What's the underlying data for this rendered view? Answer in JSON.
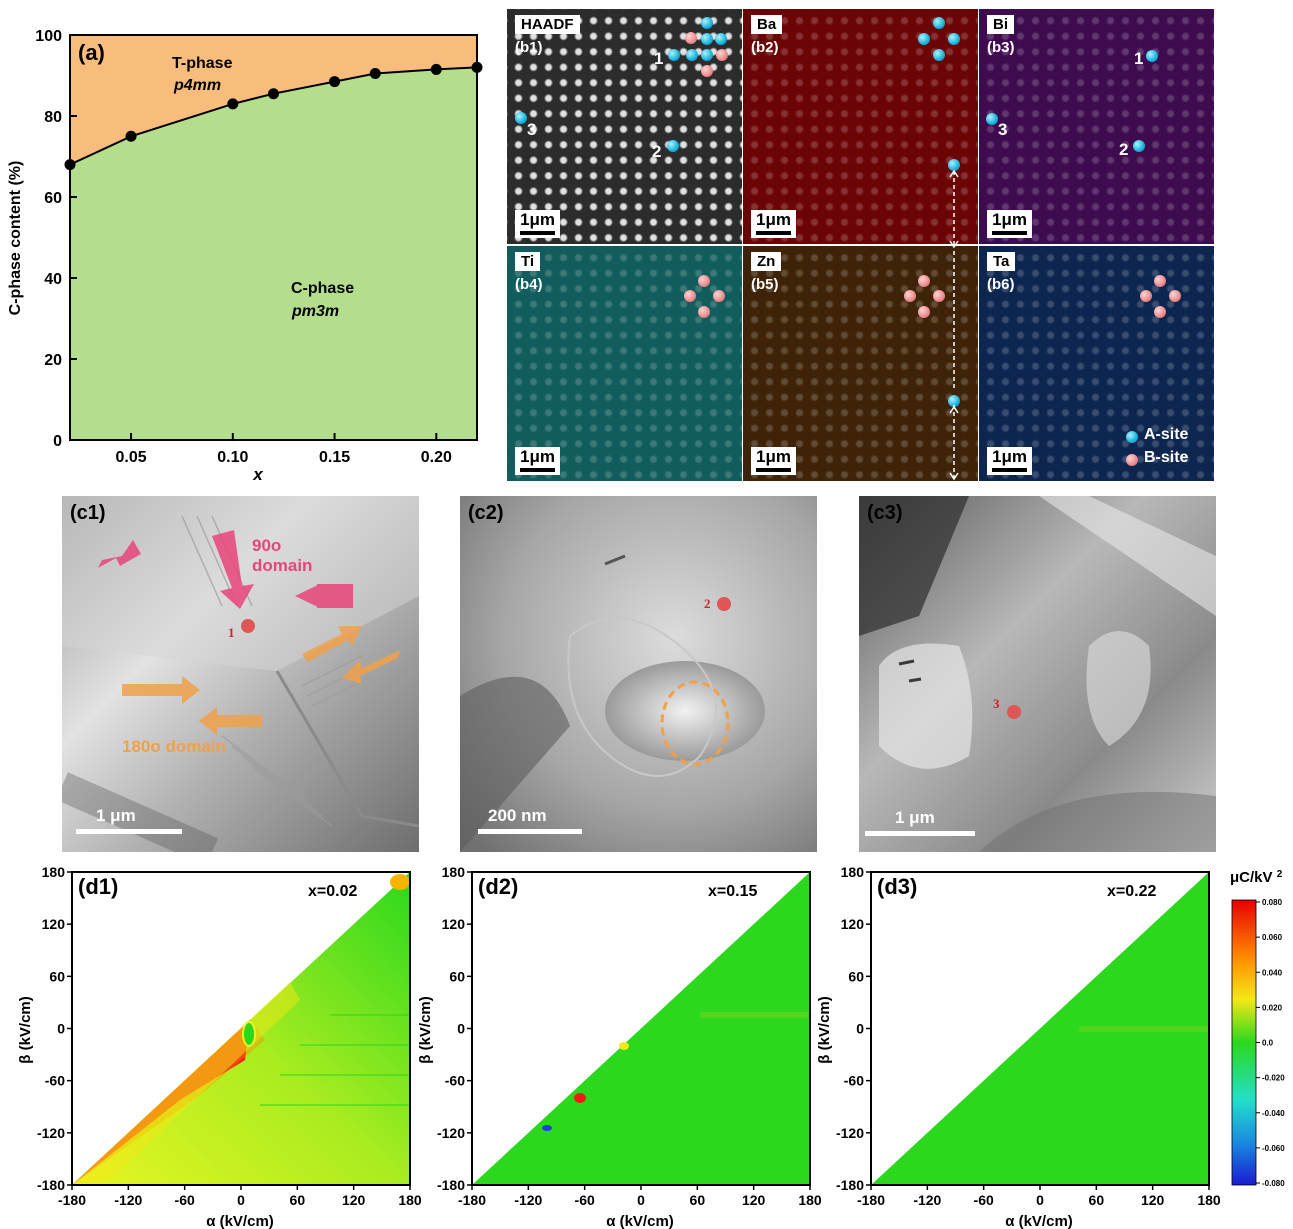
{
  "panel_a": {
    "label": "(a)",
    "t_phase_name": "T-phase",
    "t_phase_group": "p4mm",
    "c_phase_name": "C-phase",
    "c_phase_group": "pm3m",
    "xlabel": "x",
    "ylabel": "C-phase content (%)",
    "colors": {
      "t_region": "#f8bd7c",
      "c_region": "#b4de8e"
    }
  },
  "chart_data": {
    "type": "line",
    "x": [
      0.02,
      0.05,
      0.1,
      0.12,
      0.15,
      0.17,
      0.2,
      0.22
    ],
    "y": [
      68,
      75,
      83,
      85.5,
      88.5,
      90.5,
      91.5,
      92
    ],
    "xlim": [
      0.02,
      0.22
    ],
    "ylim": [
      0,
      100
    ],
    "xticks": [
      "0.05",
      "0.10",
      "0.15",
      "0.20"
    ],
    "yticks": [
      "0",
      "20",
      "40",
      "60",
      "80",
      "100"
    ],
    "xlabel": "x",
    "ylabel": "C-phase content (%)"
  },
  "eds": {
    "maps": [
      {
        "tag": "HAADF",
        "sub": "(b1)",
        "color": "#2c2c2c"
      },
      {
        "tag": "Ba",
        "sub": "(b2)",
        "color": "#6b0505"
      },
      {
        "tag": "Bi",
        "sub": "(b3)",
        "color": "#3e0b4f"
      },
      {
        "tag": "Ti",
        "sub": "(b4)",
        "color": "#115c5c"
      },
      {
        "tag": "Zn",
        "sub": "(b5)",
        "color": "#3e2308"
      },
      {
        "tag": "Ta",
        "sub": "(b6)",
        "color": "#0d2650"
      }
    ],
    "scale": "1μm",
    "site_numbers": [
      "1",
      "2",
      "3"
    ],
    "legend_a": "A-site",
    "legend_b": "B-site"
  },
  "tem": {
    "c1": {
      "label": "(c1)",
      "scale": "1 μm",
      "domain90_a": "90o",
      "domain90_b": "domain",
      "domain180": "180o domain",
      "point": "1"
    },
    "c2": {
      "label": "(c2)",
      "scale": "200 nm",
      "point": "2"
    },
    "c3": {
      "label": "(c3)",
      "scale": "1 μm",
      "point": "3"
    }
  },
  "maps_d": {
    "colorbar_title": "μC/kV2",
    "colorbar_ticks": [
      "0.080",
      "0.060",
      "0.040",
      "0.020",
      "0.0",
      "-0.020",
      "-0.040",
      "-0.060",
      "-0.080"
    ],
    "ticks": [
      "-180",
      "-120",
      "-60",
      "0",
      "60",
      "120",
      "180"
    ],
    "xlabel": "α (kV/cm)",
    "ylabel": "β (kV/cm)",
    "panels": [
      {
        "label": "(d1)",
        "x_value": "x=0.02"
      },
      {
        "label": "(d2)",
        "x_value": "x=0.15"
      },
      {
        "label": "(d3)",
        "x_value": "x=0.22"
      }
    ]
  }
}
